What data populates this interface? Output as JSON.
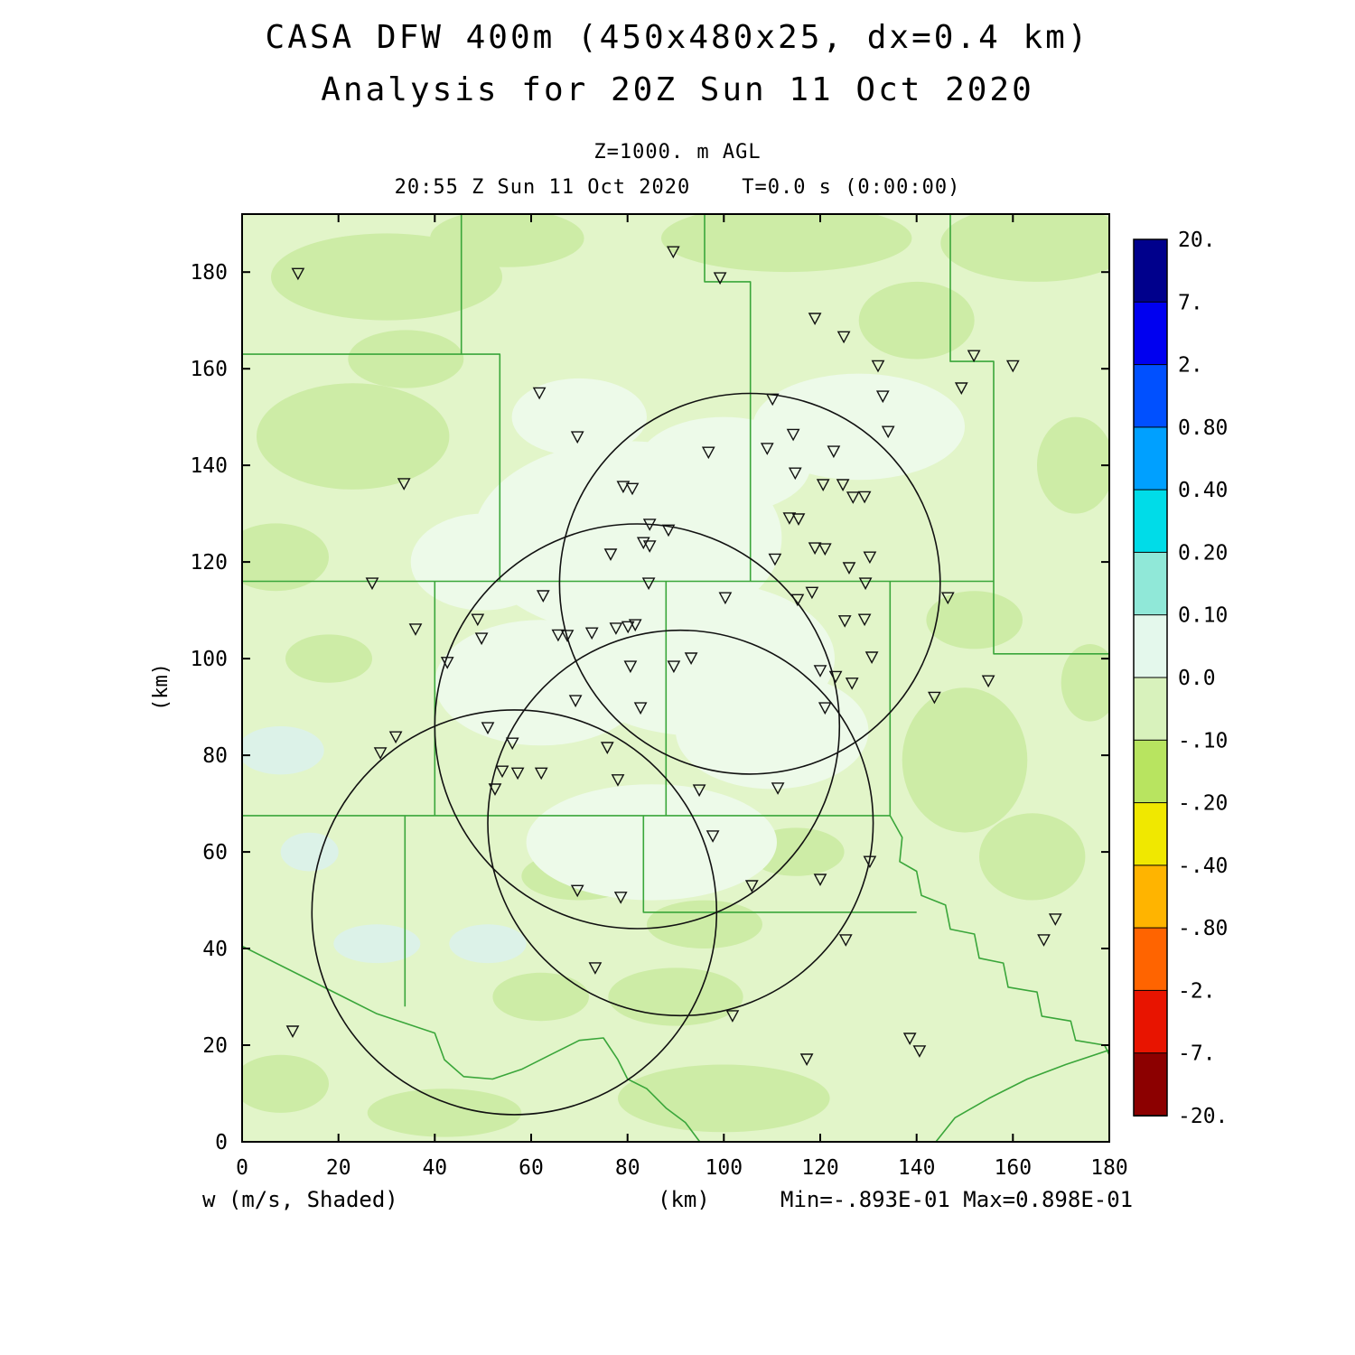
{
  "title": {
    "line1": "CASA DFW 400m (450x480x25, dx=0.4 km)",
    "line2": "Analysis for 20Z Sun 11 Oct 2020"
  },
  "header": {
    "level_label": "Z=1000. m AGL",
    "time_label": "20:55 Z Sun 11 Oct 2020    T=0.0 s (0:00:00)"
  },
  "footer": {
    "field_label": "w (m/s, Shaded)",
    "axis_unit": "(km)",
    "minmax_label": "Min=-.893E-01 Max=0.898E-01"
  },
  "chart_data": {
    "type": "heatmap",
    "title": "CASA DFW 400m (450x480x25, dx=0.4 km) — Analysis for 20Z Sun 11 Oct 2020",
    "field": "w (m/s, Shaded)",
    "level": "Z=1000. m AGL",
    "valid_time": "20:55 Z Sun 11 Oct 2020",
    "forecast_time": "T=0.0 s (0:00:00)",
    "min": "-.893E-01",
    "max": "0.898E-01",
    "xlabel": "(km)",
    "ylabel": "(km)",
    "xlim": [
      0,
      180
    ],
    "ylim": [
      0,
      192
    ],
    "x_ticks": [
      0,
      20,
      40,
      60,
      80,
      100,
      120,
      140,
      160,
      180
    ],
    "y_ticks": [
      0,
      20,
      40,
      60,
      80,
      100,
      120,
      140,
      160,
      180
    ],
    "grid": false,
    "legend_position": "right-colorbar",
    "colorbar": {
      "labels": [
        "20.",
        "7.",
        "2.",
        "0.80",
        "0.40",
        "0.20",
        "0.10",
        "0.0",
        "-.10",
        "-.20",
        "-.40",
        "-.80",
        "-2.",
        "-7.",
        "-20."
      ],
      "colors": [
        "#00008c",
        "#0000f0",
        "#0050ff",
        "#00a0ff",
        "#00dce8",
        "#90e8d8",
        "#e4f8ec",
        "#d8f2bc",
        "#b8e460",
        "#f0e800",
        "#ffb400",
        "#ff6400",
        "#e81400",
        "#8c0000"
      ]
    },
    "colors": {
      "map_base": "#e2f5c9",
      "patch_dark": "#cdeca6",
      "patch_pale": "#edfae9",
      "patch_cyan": "#dcf2e8",
      "county_line": "#3aa63a",
      "circle": "#111111",
      "marker": "#111111",
      "frame": "#000000"
    },
    "radar_circles": [
      {
        "cx": 105.4,
        "cy": 115.5,
        "r": 39.5
      },
      {
        "cx": 82.0,
        "cy": 86.0,
        "r": 42.0
      },
      {
        "cx": 91.0,
        "cy": 66.0,
        "r": 40.0
      },
      {
        "cx": 56.5,
        "cy": 47.5,
        "r": 42.0
      }
    ],
    "stations": [
      [
        11.6,
        179.8
      ],
      [
        89.5,
        184.3
      ],
      [
        99.2,
        178.9
      ],
      [
        118.9,
        170.5
      ],
      [
        124.9,
        166.7
      ],
      [
        151.9,
        162.8
      ],
      [
        160.0,
        160.7
      ],
      [
        132.0,
        160.7
      ],
      [
        133.0,
        154.4
      ],
      [
        149.3,
        156.1
      ],
      [
        61.7,
        155.1
      ],
      [
        110.1,
        153.8
      ],
      [
        114.4,
        146.5
      ],
      [
        134.1,
        147.1
      ],
      [
        69.6,
        146.0
      ],
      [
        96.8,
        142.8
      ],
      [
        109.0,
        143.6
      ],
      [
        122.8,
        143.0
      ],
      [
        114.8,
        138.5
      ],
      [
        120.6,
        136.1
      ],
      [
        124.7,
        136.1
      ],
      [
        33.6,
        136.3
      ],
      [
        79.1,
        135.7
      ],
      [
        81.0,
        135.3
      ],
      [
        126.8,
        133.5
      ],
      [
        129.2,
        133.6
      ],
      [
        113.6,
        129.2
      ],
      [
        115.5,
        129.0
      ],
      [
        84.6,
        127.9
      ],
      [
        88.5,
        126.7
      ],
      [
        110.6,
        120.7
      ],
      [
        118.9,
        123.0
      ],
      [
        121.0,
        122.8
      ],
      [
        126.0,
        118.9
      ],
      [
        130.3,
        121.1
      ],
      [
        76.5,
        121.7
      ],
      [
        83.3,
        124.1
      ],
      [
        84.6,
        123.4
      ],
      [
        27.0,
        115.7
      ],
      [
        84.4,
        115.7
      ],
      [
        100.3,
        112.7
      ],
      [
        115.3,
        112.3
      ],
      [
        118.3,
        113.8
      ],
      [
        129.4,
        115.7
      ],
      [
        146.5,
        112.7
      ],
      [
        36.0,
        106.2
      ],
      [
        48.9,
        108.2
      ],
      [
        49.7,
        104.3
      ],
      [
        62.5,
        113.1
      ],
      [
        65.6,
        105.0
      ],
      [
        67.5,
        104.9
      ],
      [
        72.6,
        105.4
      ],
      [
        77.6,
        106.4
      ],
      [
        80.1,
        106.7
      ],
      [
        81.6,
        107.1
      ],
      [
        125.1,
        107.9
      ],
      [
        129.2,
        108.2
      ],
      [
        42.6,
        99.3
      ],
      [
        80.6,
        98.5
      ],
      [
        89.6,
        98.5
      ],
      [
        93.2,
        100.2
      ],
      [
        120.0,
        97.6
      ],
      [
        123.2,
        96.4
      ],
      [
        126.6,
        95.0
      ],
      [
        130.7,
        100.4
      ],
      [
        154.9,
        95.5
      ],
      [
        69.2,
        91.4
      ],
      [
        82.7,
        89.9
      ],
      [
        121.0,
        89.9
      ],
      [
        143.7,
        92.1
      ],
      [
        31.9,
        83.9
      ],
      [
        51.0,
        85.8
      ],
      [
        56.1,
        82.6
      ],
      [
        75.8,
        81.7
      ],
      [
        28.7,
        80.6
      ],
      [
        54.0,
        76.8
      ],
      [
        57.2,
        76.4
      ],
      [
        62.1,
        76.4
      ],
      [
        78.0,
        75.0
      ],
      [
        52.5,
        73.1
      ],
      [
        94.9,
        72.9
      ],
      [
        111.2,
        73.3
      ],
      [
        97.7,
        63.4
      ],
      [
        130.3,
        58.1
      ],
      [
        69.6,
        52.1
      ],
      [
        105.8,
        53.1
      ],
      [
        120.0,
        54.4
      ],
      [
        78.6,
        50.7
      ],
      [
        125.3,
        41.9
      ],
      [
        168.8,
        46.2
      ],
      [
        166.4,
        41.9
      ],
      [
        73.3,
        36.1
      ],
      [
        101.8,
        26.2
      ],
      [
        10.5,
        23.0
      ],
      [
        138.6,
        21.5
      ],
      [
        117.2,
        17.2
      ],
      [
        140.6,
        18.9
      ]
    ],
    "county_lines": [
      [
        [
          0,
          116
        ],
        [
          156,
          116
        ]
      ],
      [
        [
          147,
          192
        ],
        [
          147,
          161.5
        ],
        [
          156,
          161.5
        ],
        [
          156,
          101
        ],
        [
          180,
          101
        ]
      ],
      [
        [
          45.5,
          192
        ],
        [
          45.5,
          163
        ],
        [
          0,
          163
        ]
      ],
      [
        [
          45.5,
          163
        ],
        [
          53.5,
          163
        ],
        [
          53.5,
          116
        ]
      ],
      [
        [
          96,
          192
        ],
        [
          96,
          178
        ],
        [
          105.5,
          178
        ],
        [
          105.5,
          116
        ]
      ],
      [
        [
          0,
          67.5
        ],
        [
          134.5,
          67.5
        ]
      ],
      [
        [
          40,
          116
        ],
        [
          40,
          67.5
        ]
      ],
      [
        [
          88,
          116
        ],
        [
          88,
          67.5
        ]
      ],
      [
        [
          134.5,
          116
        ],
        [
          134.5,
          67.5
        ]
      ],
      [
        [
          33.8,
          67.5
        ],
        [
          33.8,
          28
        ]
      ],
      [
        [
          83.3,
          67.5
        ],
        [
          83.3,
          47.5
        ],
        [
          140,
          47.5
        ]
      ],
      [
        [
          134.5,
          67.5
        ],
        [
          137,
          63
        ],
        [
          136.5,
          58
        ],
        [
          140,
          56
        ],
        [
          141,
          51
        ],
        [
          146,
          49
        ],
        [
          147,
          44
        ],
        [
          152,
          43
        ],
        [
          153,
          38
        ],
        [
          158,
          37
        ],
        [
          159,
          32
        ],
        [
          165,
          31
        ],
        [
          166,
          26
        ],
        [
          172,
          25
        ],
        [
          173,
          21
        ],
        [
          179,
          20
        ],
        [
          180,
          18
        ]
      ],
      [
        [
          144,
          0
        ],
        [
          148,
          5
        ],
        [
          155,
          9
        ],
        [
          163,
          13
        ],
        [
          171,
          16
        ],
        [
          180,
          19
        ]
      ],
      [
        [
          0,
          40.5
        ],
        [
          13,
          34
        ],
        [
          28,
          26.5
        ],
        [
          40,
          22.5
        ],
        [
          42,
          17
        ],
        [
          46,
          13.5
        ],
        [
          52,
          13
        ],
        [
          58,
          15
        ],
        [
          64,
          18
        ],
        [
          70,
          21
        ],
        [
          75,
          21.5
        ],
        [
          78,
          17
        ],
        [
          80,
          13
        ],
        [
          84,
          11
        ],
        [
          88,
          7
        ],
        [
          92,
          4
        ],
        [
          95,
          0
        ]
      ]
    ],
    "patches": {
      "dark": [
        [
          30,
          179,
          24,
          9
        ],
        [
          55,
          187,
          16,
          6
        ],
        [
          113,
          187,
          26,
          7
        ],
        [
          165,
          186,
          20,
          8
        ],
        [
          23,
          146,
          20,
          11
        ],
        [
          7,
          121,
          11,
          7
        ],
        [
          34,
          162,
          12,
          6
        ],
        [
          150,
          79,
          13,
          15
        ],
        [
          164,
          59,
          11,
          9
        ],
        [
          100,
          9,
          22,
          7
        ],
        [
          42,
          6,
          16,
          5
        ],
        [
          140,
          170,
          12,
          8
        ],
        [
          173,
          140,
          8,
          10
        ],
        [
          90,
          30,
          14,
          6
        ],
        [
          62,
          30,
          10,
          5
        ],
        [
          152,
          108,
          10,
          6
        ],
        [
          176,
          95,
          6,
          8
        ],
        [
          18,
          100,
          9,
          5
        ],
        [
          70,
          55,
          12,
          5
        ],
        [
          115,
          60,
          10,
          5
        ],
        [
          96,
          45,
          12,
          5
        ],
        [
          8,
          12,
          10,
          6
        ]
      ],
      "pale": [
        [
          80,
          125,
          32,
          20
        ],
        [
          95,
          100,
          28,
          16
        ],
        [
          62,
          95,
          22,
          13
        ],
        [
          128,
          148,
          22,
          11
        ],
        [
          85,
          62,
          26,
          12
        ],
        [
          50,
          120,
          15,
          10
        ],
        [
          110,
          85,
          20,
          12
        ],
        [
          100,
          140,
          18,
          10
        ],
        [
          70,
          150,
          14,
          8
        ]
      ],
      "cyan": [
        [
          8,
          81,
          9,
          5
        ],
        [
          28,
          41,
          9,
          4
        ],
        [
          51,
          41,
          8,
          4
        ],
        [
          14,
          60,
          6,
          4
        ]
      ]
    }
  }
}
